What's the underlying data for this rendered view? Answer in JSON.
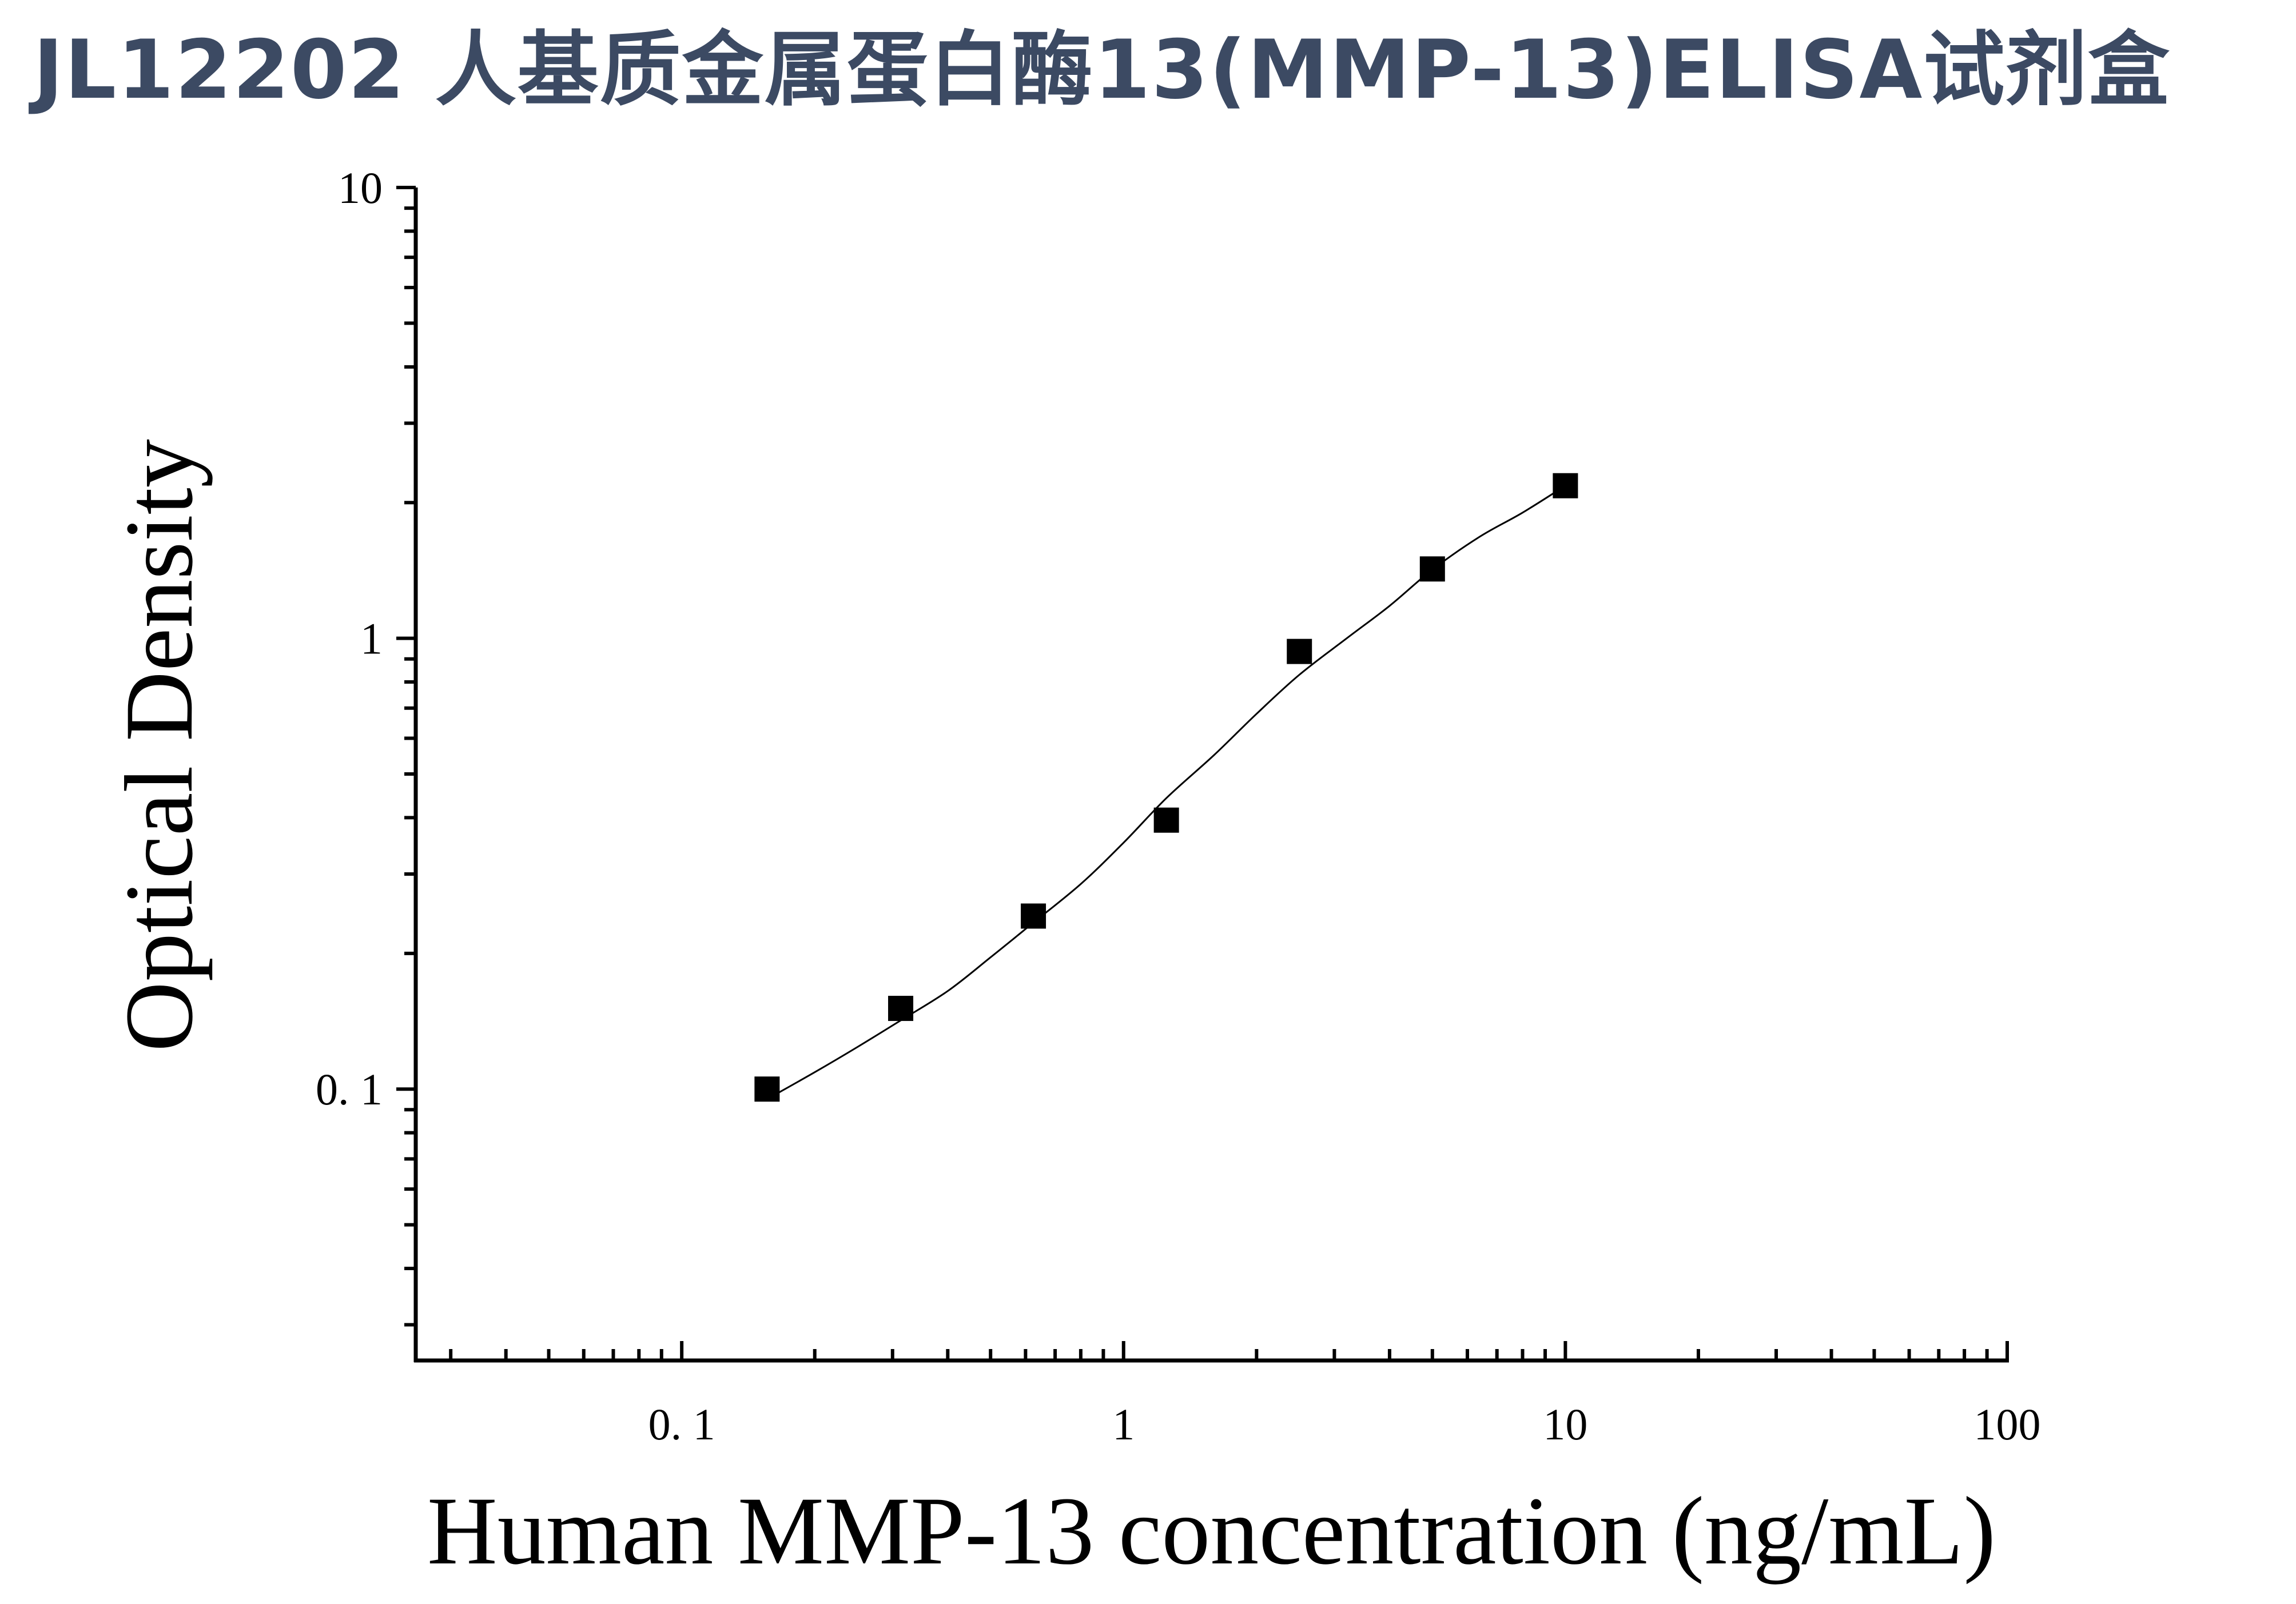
{
  "title": "JL12202 人基质金属蛋白酶13(MMP-13)ELISA试剂盒",
  "chart_data": {
    "type": "scatter",
    "title": "JL12202 人基质金属蛋白酶13(MMP-13)ELISA试剂盒",
    "xlabel": "Human MMP-13 concentration (ng/mL)",
    "ylabel": "Optical Density",
    "xscale": "log",
    "yscale": "log",
    "xlim": [
      0.025,
      100
    ],
    "ylim": [
      0.025,
      10
    ],
    "x_ticks": [
      {
        "value": 0.1,
        "label": "0. 1"
      },
      {
        "value": 1,
        "label": "1"
      },
      {
        "value": 10,
        "label": "10"
      },
      {
        "value": 100,
        "label": "100"
      }
    ],
    "y_ticks": [
      {
        "value": 0.1,
        "label": "0. 1"
      },
      {
        "value": 1,
        "label": "1"
      },
      {
        "value": 10,
        "label": "10"
      }
    ],
    "grid": false,
    "legend": "none",
    "series": [
      {
        "marker": "square",
        "color": "#000000",
        "x": [
          0.156,
          0.313,
          0.625,
          1.25,
          2.5,
          5,
          10
        ],
        "y": [
          0.1,
          0.151,
          0.242,
          0.395,
          0.935,
          1.425,
          2.18
        ]
      }
    ],
    "fit_curve": {
      "color": "#000000",
      "x": [
        0.156,
        0.2,
        0.25,
        0.313,
        0.4,
        0.5,
        0.625,
        0.8,
        1.0,
        1.25,
        1.6,
        2.0,
        2.5,
        3.2,
        4.0,
        5.0,
        6.4,
        8.0,
        10.0
      ],
      "y": [
        0.095,
        0.109,
        0.124,
        0.142,
        0.165,
        0.196,
        0.234,
        0.285,
        0.352,
        0.442,
        0.55,
        0.68,
        0.83,
        1.0,
        1.18,
        1.42,
        1.68,
        1.9,
        2.18
      ]
    }
  }
}
